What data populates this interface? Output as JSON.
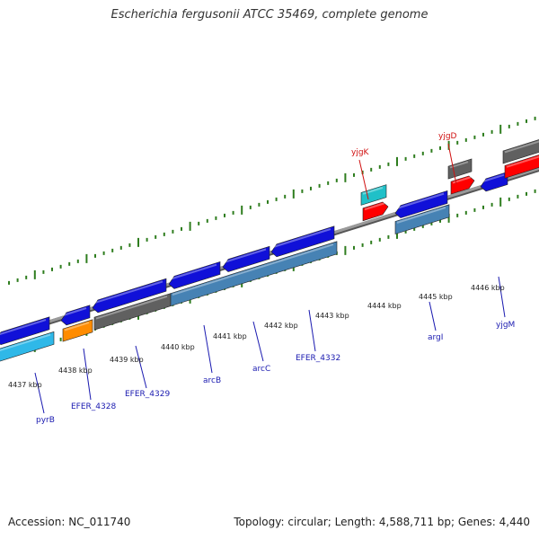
{
  "title": "Escherichia fergusonii ATCC 35469, complete genome",
  "accession": "Accession: NC_011740",
  "summary": "Topology: circular; Length: 4,588,711 bp; Genes: 4,440",
  "colors": {
    "backbone": "#808080",
    "tick": "#2e7d1e",
    "cds": "#1010d8",
    "cds_highlight": "#4682b4",
    "trna": "#20c0c8",
    "rrna": "#ff0000",
    "misc": "#606060",
    "pseudo": "#ff8c00",
    "light_cds": "#2fb8e8",
    "label_blue": "#1a1ab0",
    "label_red": "#d01010"
  },
  "scale_labels": [
    "4437 kbp",
    "4438 kbp",
    "4439 kbp",
    "4440 kbp",
    "4441 kbp",
    "4442 kbp",
    "4443 kbp",
    "4444 kbp",
    "4445 kbp",
    "4446 kbp"
  ],
  "gene_labels": [
    {
      "text": "pyrB",
      "color": "blue"
    },
    {
      "text": "EFER_4328",
      "color": "blue"
    },
    {
      "text": "EFER_4329",
      "color": "blue"
    },
    {
      "text": "arcB",
      "color": "blue"
    },
    {
      "text": "arcC",
      "color": "blue"
    },
    {
      "text": "EFER_4332",
      "color": "blue"
    },
    {
      "text": "argI",
      "color": "blue"
    },
    {
      "text": "yjgM",
      "color": "blue"
    },
    {
      "text": "yjgK",
      "color": "red"
    },
    {
      "text": "yjgD",
      "color": "red"
    }
  ]
}
